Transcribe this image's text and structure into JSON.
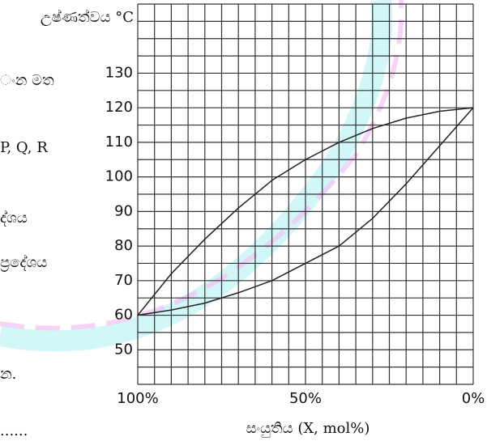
{
  "chart_data": {
    "type": "line",
    "ylabel": "උෂ්ණත්වය °C",
    "xlabel": "සංයුතිය (X, mol%)",
    "annotations": [
      "ංන  මත",
      "P, Q, R",
      "ද්ශය",
      "ප්‍රදේශය",
      "න.",
      "......"
    ],
    "x": [
      100,
      90,
      80,
      70,
      60,
      50,
      40,
      30,
      20,
      10,
      0
    ],
    "series": [
      {
        "color": "#222222",
        "values": [
          60,
          72,
          82,
          91,
          99,
          105,
          110,
          114,
          117,
          119,
          120
        ]
      },
      {
        "color": "#222222",
        "values": [
          60,
          61.5,
          63.5,
          66.5,
          70,
          75,
          80,
          88,
          98,
          109,
          120
        ]
      }
    ],
    "xlim": [
      100,
      0
    ],
    "ylim": [
      40,
      150
    ],
    "xticks": [
      {
        "value": 100,
        "label": "100%"
      },
      {
        "value": 50,
        "label": "50%"
      },
      {
        "value": 0,
        "label": "0%"
      }
    ],
    "yticks": [
      50,
      60,
      70,
      80,
      90,
      100,
      110,
      120,
      130
    ],
    "xgrid": [
      100,
      95,
      90,
      85,
      80,
      75,
      70,
      65,
      60,
      55,
      50,
      45,
      40,
      35,
      30,
      25,
      20,
      15,
      10,
      5,
      0
    ],
    "ygrid": [
      40,
      45,
      50,
      55,
      60,
      65,
      70,
      75,
      80,
      85,
      90,
      95,
      100,
      105,
      110,
      115,
      120,
      125,
      130,
      135,
      140,
      145,
      150
    ],
    "grid": true
  }
}
